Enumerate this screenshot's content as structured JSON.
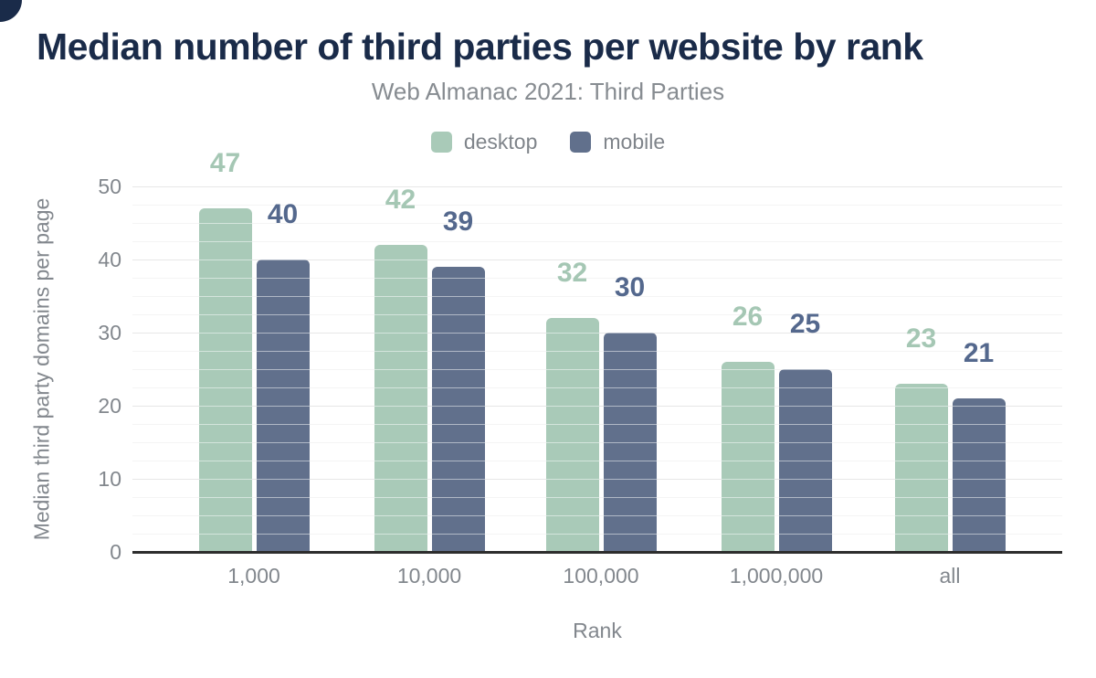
{
  "chart_data": {
    "type": "bar",
    "title": "Median number of third parties per website by rank",
    "subtitle": "Web Almanac 2021: Third Parties",
    "xlabel": "Rank",
    "ylabel": "Median third party domains per page",
    "categories": [
      "1,000",
      "10,000",
      "100,000",
      "1,000,000",
      "all"
    ],
    "series": [
      {
        "name": "desktop",
        "color": "#a9cab8",
        "label_color": "#a5c7b4",
        "values": [
          47,
          42,
          32,
          26,
          23
        ]
      },
      {
        "name": "mobile",
        "color": "#61708c",
        "label_color": "#54688d",
        "values": [
          40,
          39,
          30,
          25,
          21
        ]
      }
    ],
    "yticks": [
      0,
      10,
      20,
      30,
      40,
      50
    ],
    "ylim": [
      0,
      50
    ],
    "grid": {
      "major_every": 10,
      "minor_every": 2.5,
      "visible": true
    },
    "legend_position": "top-center"
  },
  "colors": {
    "title": "#1a2b49",
    "axis_text": "#82878d",
    "axis_line": "#2d2d2d",
    "major_grid": "#e7e7e7",
    "minor_grid": "#f4f4f4",
    "background": "#ffffff"
  }
}
